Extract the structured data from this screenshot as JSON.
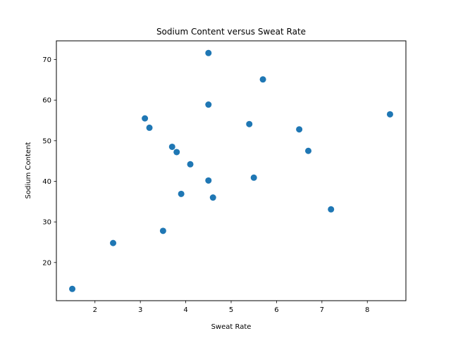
{
  "chart_data": {
    "type": "scatter",
    "title": "Sodium Content versus Sweat Rate",
    "xlabel": "Sweat Rate",
    "ylabel": "Sodium Content",
    "xlim": [
      1.15,
      8.85
    ],
    "ylim": [
      10.6,
      74.6
    ],
    "xticks": [
      2,
      3,
      4,
      5,
      6,
      7,
      8
    ],
    "yticks": [
      20,
      30,
      40,
      50,
      60,
      70
    ],
    "grid": false,
    "marker_color": "#1f77b4",
    "series": [
      {
        "points": [
          {
            "x": 1.5,
            "y": 13.5
          },
          {
            "x": 2.4,
            "y": 24.8
          },
          {
            "x": 3.1,
            "y": 55.5
          },
          {
            "x": 3.2,
            "y": 53.2
          },
          {
            "x": 3.5,
            "y": 27.8
          },
          {
            "x": 3.7,
            "y": 48.5
          },
          {
            "x": 3.8,
            "y": 47.2
          },
          {
            "x": 3.9,
            "y": 36.9
          },
          {
            "x": 4.1,
            "y": 44.2
          },
          {
            "x": 4.5,
            "y": 71.6
          },
          {
            "x": 4.5,
            "y": 58.9
          },
          {
            "x": 4.5,
            "y": 40.2
          },
          {
            "x": 4.6,
            "y": 36.0
          },
          {
            "x": 5.4,
            "y": 54.1
          },
          {
            "x": 5.5,
            "y": 40.9
          },
          {
            "x": 5.7,
            "y": 65.1
          },
          {
            "x": 6.5,
            "y": 52.8
          },
          {
            "x": 6.7,
            "y": 47.5
          },
          {
            "x": 7.2,
            "y": 33.1
          },
          {
            "x": 8.5,
            "y": 56.5
          }
        ]
      }
    ]
  }
}
